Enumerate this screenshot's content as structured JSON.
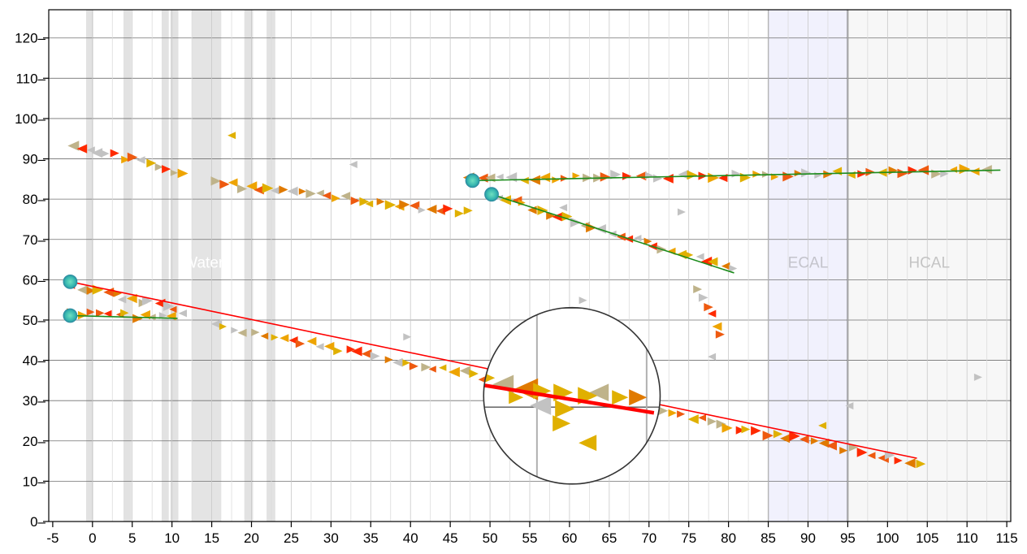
{
  "chart_data": {
    "type": "scatter",
    "title": "",
    "xlabel": "",
    "ylabel": "",
    "xlim": [
      -5.5,
      115.5
    ],
    "ylim": [
      0,
      127
    ],
    "x_ticks": [
      "-5",
      "0",
      "5",
      "10",
      "15",
      "20",
      "25",
      "30",
      "35",
      "40",
      "45",
      "50",
      "55",
      "60",
      "65",
      "70",
      "75",
      "80",
      "85",
      "90",
      "95",
      "100",
      "105",
      "110",
      "115"
    ],
    "y_ticks": [
      "0",
      "10",
      "20",
      "30",
      "40",
      "50",
      "60",
      "70",
      "80",
      "90",
      "100",
      "110",
      "120"
    ],
    "grid": true,
    "regions": [
      {
        "name": "Water",
        "x": [
          12.5,
          16.2
        ],
        "color": "#e4e4e4",
        "label_color": "#ffffff"
      },
      {
        "name": "ECAL",
        "x": [
          85,
          95
        ],
        "color": "#f1f1fd",
        "label_color": "#c4c4cc"
      },
      {
        "name": "HCAL",
        "x": [
          95,
          115.5
        ],
        "color": "#f7f7f7",
        "label_color": "#c4c4c4"
      }
    ],
    "passive_layers": [
      [
        -0.8,
        0.1
      ],
      [
        3.9,
        4.9
      ],
      [
        8.7,
        9.6
      ],
      [
        9.8,
        10.8
      ],
      [
        19.1,
        20.2
      ],
      [
        21.9,
        23.0
      ]
    ],
    "vertices": [
      [
        -2.8,
        59.5
      ],
      [
        -2.8,
        51.1
      ],
      [
        47.8,
        84.6
      ],
      [
        50.2,
        81.2
      ]
    ],
    "tracks": [
      {
        "color": "#ff0000",
        "points": [
          [
            -2.8,
            59.5
          ],
          [
            103.7,
            15.7
          ]
        ]
      },
      {
        "color": "#1c8c1c",
        "points": [
          [
            -2.8,
            51.1
          ],
          [
            10.7,
            50.4
          ]
        ]
      },
      {
        "color": "#1c8c1c",
        "points": [
          [
            47.8,
            84.6
          ],
          [
            114.2,
            87.2
          ]
        ]
      },
      {
        "color": "#1c8c1c",
        "points": [
          [
            50.2,
            81.2
          ],
          [
            80.7,
            61.7
          ]
        ]
      }
    ],
    "hit_segments": [
      {
        "from": [
          -2.5,
          93.5
        ],
        "to": [
          11.5,
          86.5
        ],
        "n": 14
      },
      {
        "from": [
          15.5,
          84
        ],
        "to": [
          47,
          76.5
        ],
        "n": 30
      },
      {
        "from": [
          47.5,
          84.8
        ],
        "to": [
          112.5,
          87
        ],
        "n": 50
      },
      {
        "from": [
          51,
          80.5
        ],
        "to": [
          80.5,
          62.5
        ],
        "n": 28
      },
      {
        "from": [
          76,
          57
        ],
        "to": [
          79,
          47
        ],
        "n": 6
      },
      {
        "from": [
          -2.5,
          58.5
        ],
        "to": [
          11.5,
          52.2
        ],
        "n": 14
      },
      {
        "from": [
          -2.5,
          52
        ],
        "to": [
          10,
          50.5
        ],
        "n": 12
      },
      {
        "from": [
          15.5,
          48.8
        ],
        "to": [
          104,
          14.5
        ],
        "n": 75
      }
    ],
    "isolated_hits": [
      [
        17.5,
        95.8
      ],
      [
        32.8,
        88.6
      ],
      [
        61.7,
        54.9
      ],
      [
        39.6,
        45.8
      ],
      [
        74.1,
        76.8
      ],
      [
        59.2,
        77.9
      ],
      [
        77.9,
        40.9
      ],
      [
        91.8,
        23.8
      ],
      [
        95.2,
        28.7
      ],
      [
        111.4,
        35.8
      ]
    ],
    "hit_colors": [
      "#e0b000",
      "#eea400",
      "#e07a00",
      "#ee5a10",
      "#bfb38a",
      "#c2c2c2",
      "#ff2a00"
    ],
    "inset": {
      "center": [
        60.3,
        31.2
      ],
      "radius_x": 11.1
    }
  }
}
